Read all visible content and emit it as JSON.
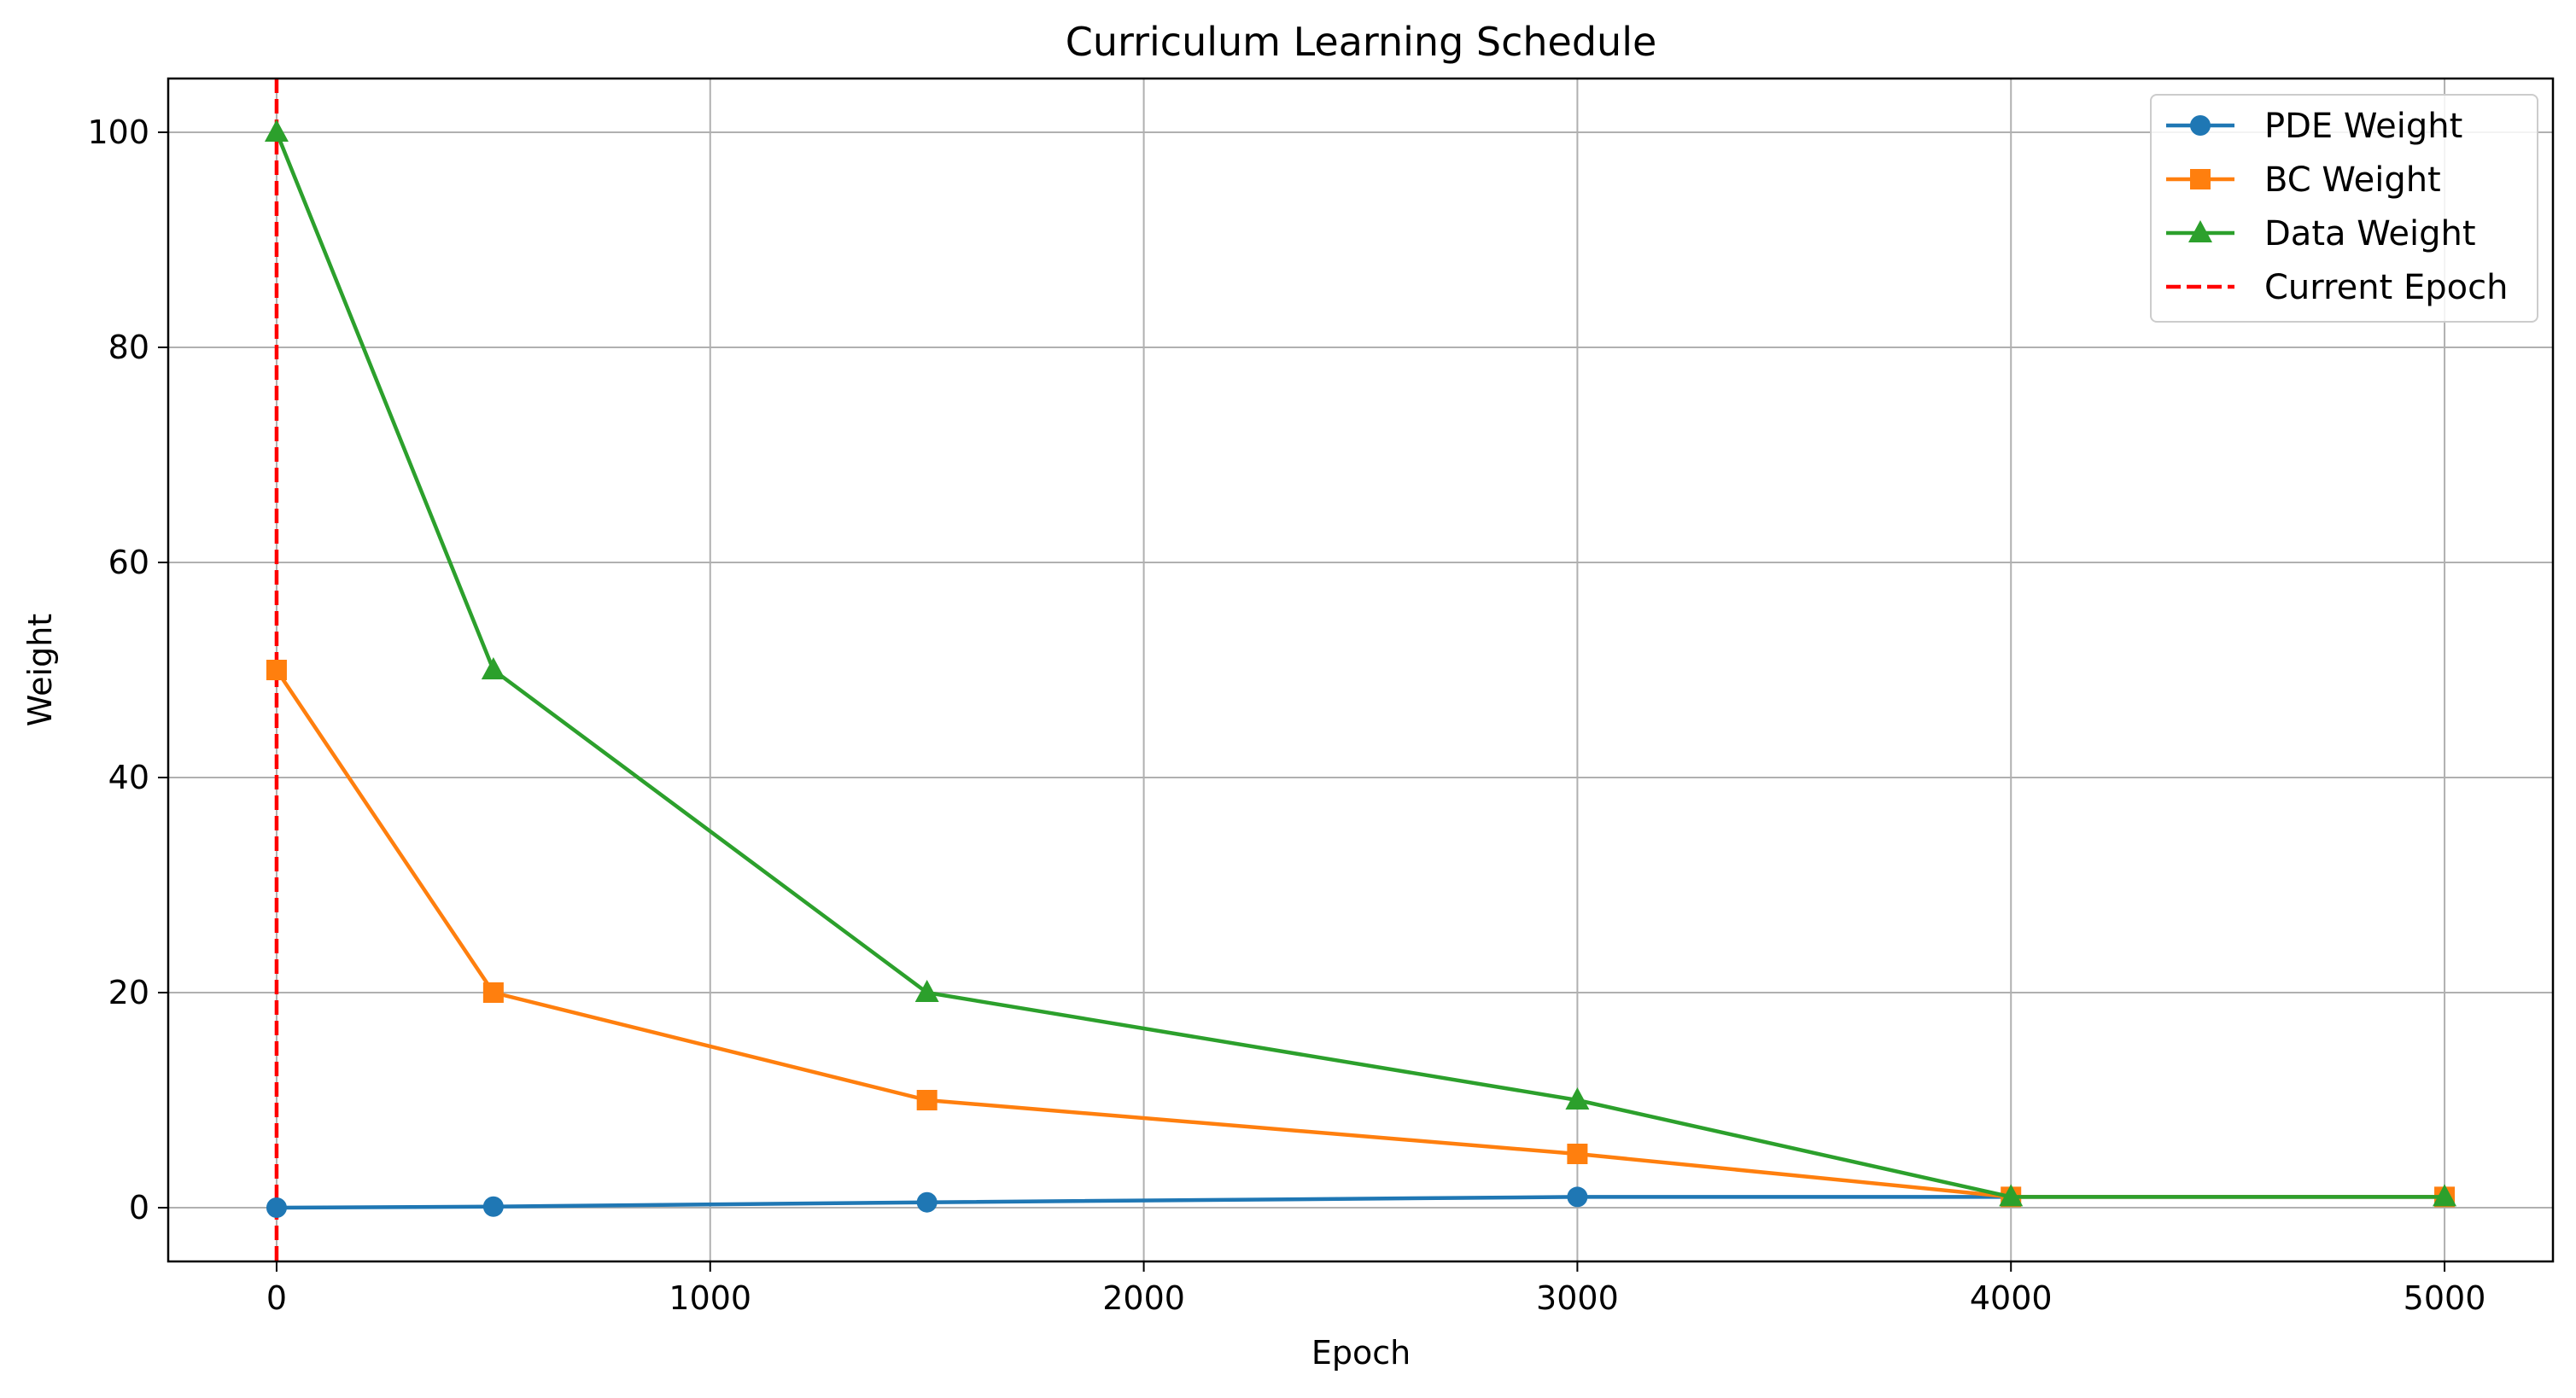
{
  "chart_data": {
    "type": "line",
    "title": "Curriculum Learning Schedule",
    "xlabel": "Epoch",
    "ylabel": "Weight",
    "xlim": [
      -250,
      5250
    ],
    "ylim": [
      -5,
      105
    ],
    "xticks": [
      0,
      1000,
      2000,
      3000,
      4000,
      5000
    ],
    "yticks": [
      0,
      20,
      40,
      60,
      80,
      100
    ],
    "grid": true,
    "legend_position": "top-right",
    "x": [
      0,
      500,
      1500,
      3000,
      4000,
      5000
    ],
    "series": [
      {
        "name": "PDE Weight",
        "color": "#1f77b4",
        "marker": "circle",
        "values": [
          0,
          0.1,
          0.5,
          1,
          1,
          1
        ]
      },
      {
        "name": "BC Weight",
        "color": "#ff7f0e",
        "marker": "square",
        "values": [
          50,
          20,
          10,
          5,
          1,
          1
        ]
      },
      {
        "name": "Data Weight",
        "color": "#2ca02c",
        "marker": "triangle",
        "values": [
          100,
          50,
          20,
          10,
          1,
          1
        ]
      }
    ],
    "vline": {
      "name": "Current Epoch",
      "x": 0,
      "color": "#ff0000",
      "style": "dashed"
    }
  }
}
